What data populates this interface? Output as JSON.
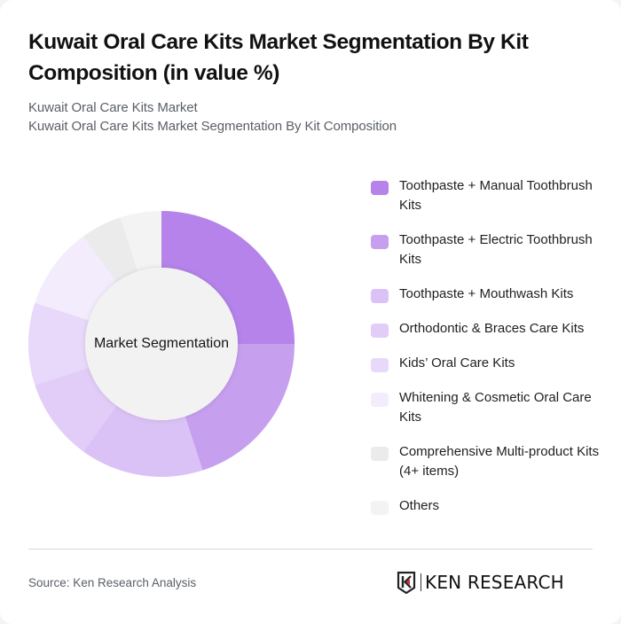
{
  "header": {
    "title": "Kuwait Oral Care Kits Market Segmentation By Kit Composition (in value %)",
    "breadcrumb_1": "Kuwait Oral Care Kits Market",
    "breadcrumb_2": "Kuwait Oral Care Kits Market Segmentation By Kit Composition"
  },
  "donut": {
    "center_label": "Market Segmentation"
  },
  "legend": {
    "items": [
      {
        "label": "Toothpaste + Manual Toothbrush Kits",
        "color": "#b583ea"
      },
      {
        "label": "Toothpaste + Electric Toothbrush Kits",
        "color": "#c69fef"
      },
      {
        "label": "Toothpaste + Mouthwash Kits",
        "color": "#dbc2f6"
      },
      {
        "label": "Orthodontic & Braces Care Kits",
        "color": "#e1cdf7"
      },
      {
        "label": "Kids’ Oral Care Kits",
        "color": "#e8d8fa"
      },
      {
        "label": "Whitening & Cosmetic Oral Care Kits",
        "color": "#f3ecfc"
      },
      {
        "label": "Comprehensive Multi-product Kits (4+ items)",
        "color": "#ebebeb"
      },
      {
        "label": "Others",
        "color": "#f3f3f3"
      }
    ]
  },
  "footer": {
    "source": "Source: Ken Research Analysis",
    "logo_text": "KEN RESEARCH"
  },
  "chart_data": {
    "type": "pie",
    "subtype": "donut",
    "title": "Kuwait Oral Care Kits Market Segmentation By Kit Composition (in value %)",
    "center_label": "Market Segmentation",
    "categories": [
      "Toothpaste + Manual Toothbrush Kits",
      "Toothpaste + Electric Toothbrush Kits",
      "Toothpaste + Mouthwash Kits",
      "Orthodontic & Braces Care Kits",
      "Kids’ Oral Care Kits",
      "Whitening & Cosmetic Oral Care Kits",
      "Comprehensive Multi-product Kits (4+ items)",
      "Others"
    ],
    "values": [
      25,
      20,
      15,
      10,
      10,
      10,
      5,
      5
    ],
    "colors": [
      "#b583ea",
      "#c69fef",
      "#dbc2f6",
      "#e1cdf7",
      "#e8d8fa",
      "#f3ecfc",
      "#ebebeb",
      "#f3f3f3"
    ],
    "unit": "%",
    "legend_position": "right",
    "start_angle": "12 o'clock, clockwise"
  }
}
